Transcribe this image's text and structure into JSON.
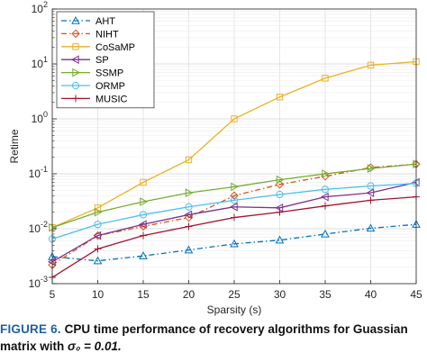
{
  "caption": {
    "figure_number": "FIGURE 6.",
    "text_line1": "CPU time performance of recovery algorithms for Guassian",
    "text_line2_prefix": "matrix with ",
    "text_line2_math": "σ₀ = 0.01."
  },
  "chart_data": {
    "type": "line",
    "title": "",
    "xlabel": "Sparsity (s)",
    "ylabel": "Retime",
    "x": [
      5,
      10,
      15,
      20,
      25,
      30,
      35,
      40,
      45
    ],
    "xlim": [
      5,
      45
    ],
    "ylim": [
      0.001,
      100
    ],
    "yscale": "log",
    "x_ticks": [
      "5",
      "10",
      "15",
      "20",
      "25",
      "30",
      "35",
      "40",
      "45"
    ],
    "y_ticks": [
      {
        "base": "10",
        "exp": "-3",
        "value": 0.001
      },
      {
        "base": "10",
        "exp": "-2",
        "value": 0.01
      },
      {
        "base": "10",
        "exp": "-1",
        "value": 0.1
      },
      {
        "base": "10",
        "exp": "0",
        "value": 1
      },
      {
        "base": "10",
        "exp": "1",
        "value": 10
      },
      {
        "base": "10",
        "exp": "2",
        "value": 100
      }
    ],
    "grid": true,
    "legend_position": "top-left",
    "series": [
      {
        "name": "AHT",
        "color": "#0072bd",
        "marker": "triangle-up",
        "dash": "dash-dot",
        "values": [
          0.0031,
          0.0026,
          0.0032,
          0.0041,
          0.0053,
          0.0062,
          0.008,
          0.0102,
          0.012
        ]
      },
      {
        "name": "NIHT",
        "color": "#d95319",
        "marker": "diamond",
        "dash": "dash-dot",
        "values": [
          0.0022,
          0.0075,
          0.011,
          0.016,
          0.04,
          0.064,
          0.09,
          0.13,
          0.15
        ]
      },
      {
        "name": "CoSaMP",
        "color": "#edb120",
        "marker": "square",
        "dash": "solid",
        "values": [
          0.0105,
          0.024,
          0.07,
          0.18,
          1.0,
          2.5,
          5.5,
          9.5,
          11.0
        ]
      },
      {
        "name": "SP",
        "color": "#7e2f8e",
        "marker": "triangle-left",
        "dash": "solid",
        "values": [
          0.0025,
          0.0075,
          0.012,
          0.018,
          0.025,
          0.024,
          0.038,
          0.045,
          0.07
        ]
      },
      {
        "name": "SSMP",
        "color": "#77ac30",
        "marker": "triangle-right",
        "dash": "solid",
        "values": [
          0.0105,
          0.02,
          0.031,
          0.045,
          0.058,
          0.078,
          0.1,
          0.125,
          0.15
        ]
      },
      {
        "name": "ORMP",
        "color": "#4dbeee",
        "marker": "circle",
        "dash": "solid",
        "values": [
          0.0065,
          0.012,
          0.018,
          0.025,
          0.033,
          0.042,
          0.052,
          0.06,
          0.067
        ]
      },
      {
        "name": "MUSIC",
        "color": "#a2142f",
        "marker": "plus",
        "dash": "solid",
        "values": [
          0.0013,
          0.0043,
          0.0075,
          0.011,
          0.016,
          0.02,
          0.026,
          0.033,
          0.038
        ]
      }
    ]
  }
}
